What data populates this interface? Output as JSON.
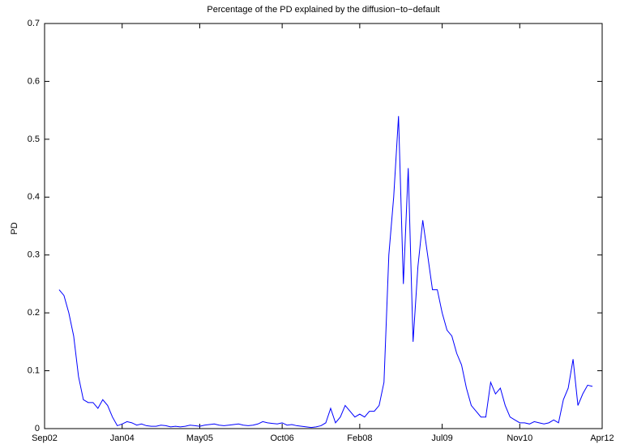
{
  "chart_data": {
    "type": "line",
    "title": "Percentage of the PD explained by the diffusion−to−default",
    "y_label": "PD",
    "color": "#0000ff",
    "x": [
      "2002-12",
      "2003-01",
      "2003-02",
      "2003-03",
      "2003-04",
      "2003-05",
      "2003-06",
      "2003-07",
      "2003-08",
      "2003-09",
      "2003-10",
      "2003-11",
      "2003-12",
      "2004-01",
      "2004-02",
      "2004-03",
      "2004-04",
      "2004-05",
      "2004-06",
      "2004-07",
      "2004-08",
      "2004-09",
      "2004-10",
      "2004-11",
      "2004-12",
      "2005-01",
      "2005-02",
      "2005-03",
      "2005-04",
      "2005-05",
      "2005-06",
      "2005-07",
      "2005-08",
      "2005-09",
      "2005-10",
      "2005-11",
      "2005-12",
      "2006-01",
      "2006-02",
      "2006-03",
      "2006-04",
      "2006-05",
      "2006-06",
      "2006-07",
      "2006-08",
      "2006-09",
      "2006-10",
      "2006-11",
      "2006-12",
      "2007-01",
      "2007-02",
      "2007-03",
      "2007-04",
      "2007-05",
      "2007-06",
      "2007-07",
      "2007-08",
      "2007-09",
      "2007-10",
      "2007-11",
      "2007-12",
      "2008-01",
      "2008-02",
      "2008-03",
      "2008-04",
      "2008-05",
      "2008-06",
      "2008-07",
      "2008-08",
      "2008-09",
      "2008-10",
      "2008-11",
      "2008-12",
      "2009-01",
      "2009-02",
      "2009-03",
      "2009-04",
      "2009-05",
      "2009-06",
      "2009-07",
      "2009-08",
      "2009-09",
      "2009-10",
      "2009-11",
      "2009-12",
      "2010-01",
      "2010-02",
      "2010-03",
      "2010-04",
      "2010-05",
      "2010-06",
      "2010-07",
      "2010-08",
      "2010-09",
      "2010-10",
      "2010-11",
      "2010-12",
      "2011-01",
      "2011-02",
      "2011-03",
      "2011-04",
      "2011-05",
      "2011-06",
      "2011-07",
      "2011-08",
      "2011-09",
      "2011-10",
      "2011-11",
      "2011-12",
      "2012-01",
      "2012-02"
    ],
    "values": [
      0.24,
      0.23,
      0.2,
      0.16,
      0.09,
      0.05,
      0.045,
      0.045,
      0.035,
      0.05,
      0.04,
      0.02,
      0.005,
      0.008,
      0.012,
      0.01,
      0.006,
      0.008,
      0.005,
      0.004,
      0.004,
      0.006,
      0.005,
      0.003,
      0.004,
      0.003,
      0.004,
      0.006,
      0.005,
      0.004,
      0.006,
      0.007,
      0.008,
      0.006,
      0.005,
      0.006,
      0.007,
      0.008,
      0.006,
      0.005,
      0.006,
      0.008,
      0.012,
      0.01,
      0.009,
      0.008,
      0.01,
      0.006,
      0.007,
      0.005,
      0.004,
      0.003,
      0.002,
      0.003,
      0.005,
      0.01,
      0.035,
      0.01,
      0.02,
      0.04,
      0.03,
      0.02,
      0.025,
      0.02,
      0.03,
      0.03,
      0.04,
      0.08,
      0.3,
      0.4,
      0.54,
      0.25,
      0.45,
      0.15,
      0.28,
      0.36,
      0.3,
      0.24,
      0.24,
      0.2,
      0.17,
      0.16,
      0.13,
      0.11,
      0.07,
      0.04,
      0.03,
      0.02,
      0.02,
      0.08,
      0.06,
      0.07,
      0.04,
      0.02,
      0.015,
      0.01,
      0.01,
      0.008,
      0.012,
      0.01,
      0.008,
      0.01,
      0.015,
      0.01,
      0.05,
      0.07,
      0.12,
      0.04,
      0.06,
      0.075,
      0.073
    ],
    "xlim": [
      "2002-09",
      "2012-04"
    ],
    "xticks": [
      {
        "value": "2002-09",
        "label": "Sep02"
      },
      {
        "value": "2004-01",
        "label": "Jan04"
      },
      {
        "value": "2005-05",
        "label": "May05"
      },
      {
        "value": "2006-10",
        "label": "Oct06"
      },
      {
        "value": "2008-02",
        "label": "Feb08"
      },
      {
        "value": "2009-07",
        "label": "Jul09"
      },
      {
        "value": "2010-11",
        "label": "Nov10"
      },
      {
        "value": "2012-04",
        "label": "Apr12"
      }
    ],
    "ylim": [
      0,
      0.7
    ],
    "yticks": [
      0,
      0.1,
      0.2,
      0.3,
      0.4,
      0.5,
      0.6,
      0.7
    ],
    "grid": false
  }
}
